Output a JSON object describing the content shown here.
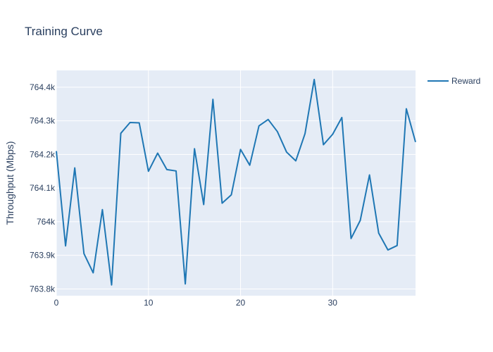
{
  "chart_data": {
    "type": "line",
    "title": "Training Curve",
    "xlabel": "",
    "ylabel": "Throughput (Mbps)",
    "xlim": [
      0,
      39
    ],
    "ylim": [
      763780,
      764450
    ],
    "x_ticks": [
      0,
      10,
      20,
      30
    ],
    "x_tick_labels": [
      "0",
      "10",
      "20",
      "30"
    ],
    "y_ticks": [
      763800,
      763900,
      764000,
      764100,
      764200,
      764300,
      764400
    ],
    "y_tick_labels": [
      "763.8k",
      "763.9k",
      "764k",
      "764.1k",
      "764.2k",
      "764.3k",
      "764.4k"
    ],
    "grid": true,
    "legend_position": "top-right",
    "colors": {
      "series": "#1f77b4",
      "plot_bg": "#e5ecf6",
      "grid": "#ffffff",
      "text": "#2a3f5f"
    },
    "series": [
      {
        "name": "Reward",
        "x": [
          0,
          1,
          2,
          3,
          4,
          5,
          6,
          7,
          8,
          9,
          10,
          11,
          12,
          13,
          14,
          15,
          16,
          17,
          18,
          19,
          20,
          21,
          22,
          23,
          24,
          25,
          26,
          27,
          28,
          29,
          30,
          31,
          32,
          33,
          34,
          35,
          36,
          37,
          38,
          39
        ],
        "values": [
          764210,
          763928,
          764160,
          763905,
          763848,
          764036,
          763812,
          764263,
          764295,
          764294,
          764150,
          764204,
          764155,
          764151,
          763815,
          764217,
          764051,
          764364,
          764055,
          764080,
          764215,
          764168,
          764285,
          764304,
          764268,
          764207,
          764181,
          764262,
          764423,
          764229,
          764260,
          764310,
          763950,
          764004,
          764139,
          763966,
          763916,
          763929,
          764336,
          764237
        ]
      }
    ]
  }
}
